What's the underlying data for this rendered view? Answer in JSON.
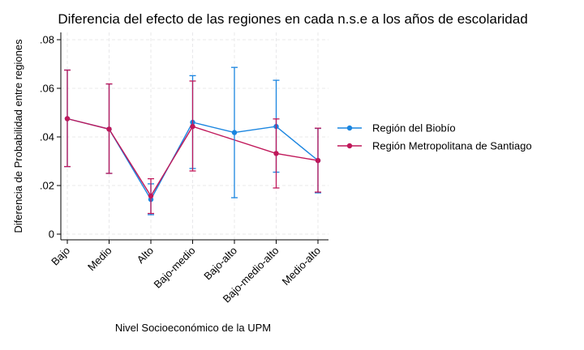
{
  "chart_data": {
    "type": "line",
    "title": "Diferencia  del efecto de las regiones en cada n.s.e a los años de escolaridad",
    "xlabel": "Nivel Socioeconómico de la UPM",
    "ylabel": "Diferencia de Probabilidad entre regiones",
    "categories": [
      "Bajo",
      "Medio",
      "Alto",
      "Bajo-medio",
      "Bajo-alto",
      "Bajo-medio-alto",
      "Medio-alto"
    ],
    "ylim": [
      0,
      0.08
    ],
    "yticks": [
      0,
      0.02,
      0.04,
      0.06,
      0.08
    ],
    "ytick_labels": [
      "0",
      ".02",
      ".04",
      ".06",
      ".08"
    ],
    "grid": true,
    "legend_position": "right",
    "series": [
      {
        "name": "Región del Biobío",
        "color": "#1a85e0",
        "values": [
          0.0475,
          0.0432,
          0.0143,
          0.046,
          0.0418,
          0.0443,
          0.0303
        ],
        "lower": [
          0.0278,
          0.025,
          0.008,
          0.027,
          0.015,
          0.0255,
          0.017
        ],
        "upper": [
          0.0675,
          0.0618,
          0.0207,
          0.0652,
          0.0686,
          0.0633,
          0.0435
        ]
      },
      {
        "name": "Región Metropolitana de Santiago",
        "color": "#c0185a",
        "values": [
          0.0475,
          0.0432,
          0.0157,
          0.0443,
          null,
          0.0332,
          0.0303
        ],
        "lower": [
          0.0278,
          0.025,
          0.0085,
          0.026,
          null,
          0.019,
          0.0173
        ],
        "upper": [
          0.0675,
          0.0618,
          0.0228,
          0.063,
          null,
          0.0474,
          0.0436
        ]
      }
    ]
  }
}
